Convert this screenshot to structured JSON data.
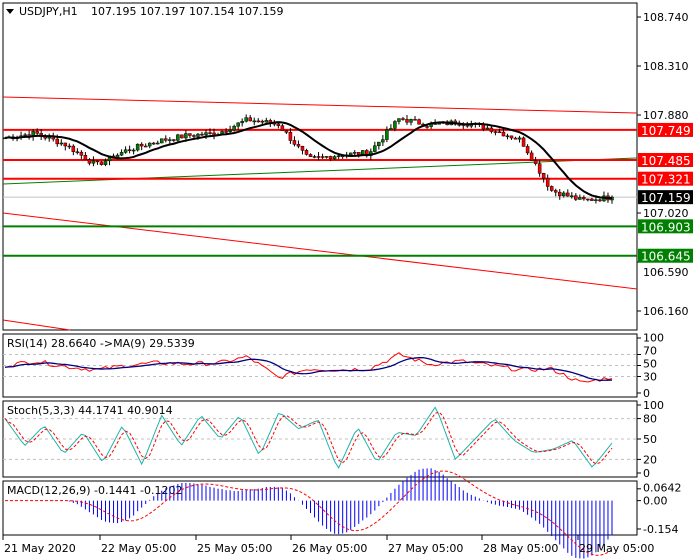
{
  "header": {
    "symbol": "USDJPY,H1",
    "ohlc": "107.195 107.197 107.154 107.159"
  },
  "price_axis": {
    "ticks": [
      "108.740",
      "108.310",
      "107.880",
      "107.020",
      "106.590",
      "106.160"
    ]
  },
  "levels": [
    {
      "value": "107.749",
      "color": "#ff0000"
    },
    {
      "value": "107.485",
      "color": "#ff0000"
    },
    {
      "value": "107.321",
      "color": "#ff0000"
    },
    {
      "value": "106.903",
      "color": "#008000"
    },
    {
      "value": "106.645",
      "color": "#008000"
    }
  ],
  "current_price": "107.159",
  "indicators": {
    "rsi": {
      "label": "RSI(14) 28.6640  ->MA(9) 29.5339",
      "ticks": [
        "100",
        "70",
        "50",
        "30",
        "0"
      ]
    },
    "stoch": {
      "label": "Stoch(5,3,3) 44.1741 40.9014",
      "ticks": [
        "100",
        "80",
        "50",
        "20",
        "0"
      ]
    },
    "macd": {
      "label": "MACD(12,26,9) -0.1441 -0.1202",
      "ticks": [
        "0.0642",
        "0.00",
        "-0.154"
      ]
    }
  },
  "time_axis": [
    "21 May 2020",
    "22 May 05:00",
    "25 May 05:00",
    "26 May 05:00",
    "27 May 05:00",
    "28 May 05:00",
    "29 May 05:00"
  ],
  "chart_data": {
    "type": "candlestick",
    "title": "USDJPY,H1",
    "ylim": [
      106.08,
      108.83
    ],
    "close_knots": [
      107.68,
      107.72,
      107.62,
      107.44,
      107.57,
      107.65,
      107.7,
      107.72,
      107.84,
      107.8,
      107.49,
      107.53,
      107.55,
      107.85,
      107.79,
      107.82,
      107.76,
      107.66,
      107.22,
      107.13,
      107.159
    ],
    "rsi_knots": [
      50,
      58,
      48,
      42,
      50,
      55,
      53,
      54,
      66,
      28,
      44,
      42,
      44,
      70,
      52,
      58,
      50,
      42,
      44,
      18,
      29
    ],
    "stoch_knots": [
      80,
      40,
      70,
      28,
      60,
      15,
      70,
      12,
      85,
      40,
      85,
      50,
      85,
      25,
      90,
      65,
      78,
      5,
      68,
      15,
      60,
      55,
      98,
      20,
      50,
      80,
      48,
      30,
      35,
      48,
      8,
      44
    ]
  }
}
